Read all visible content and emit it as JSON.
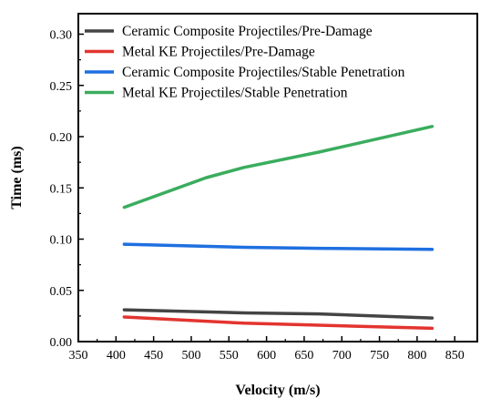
{
  "chart_data": {
    "type": "line",
    "title": "",
    "xlabel": "Velocity (m/s)",
    "ylabel": "Time (ms)",
    "xlim": [
      350,
      880
    ],
    "ylim": [
      0,
      0.32
    ],
    "xticks": [
      350,
      400,
      450,
      500,
      550,
      600,
      650,
      700,
      750,
      800,
      850
    ],
    "yticks": [
      0.0,
      0.05,
      0.1,
      0.15,
      0.2,
      0.25,
      0.3
    ],
    "ytick_labels": [
      "0.00",
      "0.05",
      "0.10",
      "0.15",
      "0.20",
      "0.25",
      "0.30"
    ],
    "grid": false,
    "legend_position": "top-left",
    "series": [
      {
        "name": "Ceramic Composite Projectiles/Pre-Damage",
        "color": "#444444",
        "x": [
          411,
          570,
          670,
          820
        ],
        "y": [
          0.031,
          0.028,
          0.027,
          0.023
        ]
      },
      {
        "name": "Metal KE Projectiles/Pre-Damage",
        "color": "#e3342f",
        "x": [
          411,
          570,
          670,
          820
        ],
        "y": [
          0.024,
          0.018,
          0.016,
          0.013
        ]
      },
      {
        "name": "Ceramic Composite Projectiles/Stable Penetration",
        "color": "#1f6fe0",
        "x": [
          411,
          570,
          670,
          820
        ],
        "y": [
          0.095,
          0.092,
          0.091,
          0.09
        ]
      },
      {
        "name": "Metal KE Projectiles/Stable Penetration",
        "color": "#3aad5e",
        "x": [
          411,
          520,
          570,
          670,
          820
        ],
        "y": [
          0.131,
          0.16,
          0.17,
          0.185,
          0.21
        ]
      }
    ]
  }
}
